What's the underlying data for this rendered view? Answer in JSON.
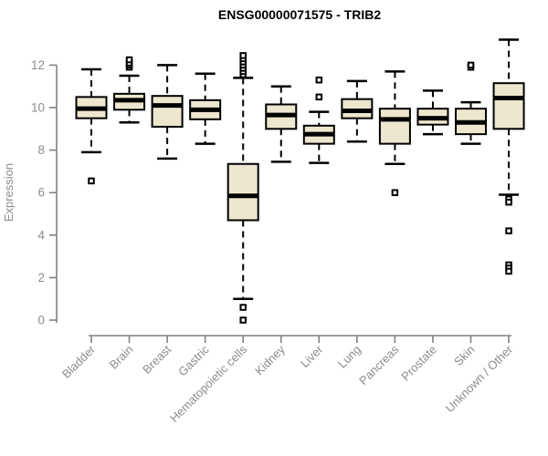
{
  "chart_data": {
    "type": "boxplot",
    "title": "ENSG00000071575 - TRIB2",
    "xlabel": "",
    "ylabel": "Expression",
    "grid": false,
    "legend": "none",
    "yticks": [
      0,
      2,
      4,
      6,
      8,
      10,
      12
    ],
    "ylim": [
      -0.3,
      13.4
    ],
    "categories": [
      "Bladder",
      "Brain",
      "Breast",
      "Gastric",
      "Hematopoietic cells",
      "Kidney",
      "Liver",
      "Lung",
      "Pancreas",
      "Prostate",
      "Skin",
      "Unknown / Other"
    ],
    "series": [
      {
        "category": "Bladder",
        "whisker_low": 7.9,
        "q1": 9.5,
        "median": 9.95,
        "q3": 10.5,
        "whisker_high": 11.8,
        "outliers": [
          6.55
        ]
      },
      {
        "category": "Brain",
        "whisker_low": 9.3,
        "q1": 9.9,
        "median": 10.35,
        "q3": 10.65,
        "whisker_high": 11.5,
        "outliers": [
          11.9,
          12.0,
          12.1,
          12.25
        ]
      },
      {
        "category": "Breast",
        "whisker_low": 7.6,
        "q1": 9.1,
        "median": 10.1,
        "q3": 10.55,
        "whisker_high": 12.0,
        "outliers": []
      },
      {
        "category": "Gastric",
        "whisker_low": 8.3,
        "q1": 9.45,
        "median": 9.9,
        "q3": 10.35,
        "whisker_high": 11.6,
        "outliers": []
      },
      {
        "category": "Hematopoietic cells",
        "whisker_low": 1.0,
        "q1": 4.7,
        "median": 5.85,
        "q3": 7.35,
        "whisker_high": 11.4,
        "outliers": [
          11.55,
          11.7,
          11.85,
          12.0,
          12.15,
          12.3,
          12.45,
          0.6,
          0.0
        ]
      },
      {
        "category": "Kidney",
        "whisker_low": 7.45,
        "q1": 9.0,
        "median": 9.65,
        "q3": 10.15,
        "whisker_high": 11.0,
        "outliers": []
      },
      {
        "category": "Liver",
        "whisker_low": 7.4,
        "q1": 8.3,
        "median": 8.75,
        "q3": 9.15,
        "whisker_high": 9.8,
        "outliers": [
          10.5,
          11.3
        ]
      },
      {
        "category": "Lung",
        "whisker_low": 8.4,
        "q1": 9.5,
        "median": 9.85,
        "q3": 10.4,
        "whisker_high": 11.25,
        "outliers": []
      },
      {
        "category": "Pancreas",
        "whisker_low": 7.35,
        "q1": 8.3,
        "median": 9.45,
        "q3": 9.95,
        "whisker_high": 11.7,
        "outliers": [
          6.0
        ]
      },
      {
        "category": "Prostate",
        "whisker_low": 8.75,
        "q1": 9.2,
        "median": 9.5,
        "q3": 9.95,
        "whisker_high": 10.8,
        "outliers": []
      },
      {
        "category": "Skin",
        "whisker_low": 8.3,
        "q1": 8.75,
        "median": 9.3,
        "q3": 9.95,
        "whisker_high": 10.25,
        "outliers": [
          11.9,
          12.0
        ]
      },
      {
        "category": "Unknown / Other",
        "whisker_low": 5.9,
        "q1": 9.0,
        "median": 10.45,
        "q3": 11.15,
        "whisker_high": 13.2,
        "outliers": [
          5.7,
          5.55,
          4.2,
          2.6,
          2.45,
          2.3
        ]
      }
    ],
    "colors": {
      "box_fill": "#EDE7CF",
      "box_stroke": "#000000",
      "median": "#000000",
      "whisker": "#000000",
      "outlier_stroke": "#000000",
      "outlier_fill": "#ffffff",
      "axis": "#808080",
      "tick_text": "#8c8c8c",
      "title_text": "#000000",
      "background": "#ffffff"
    }
  }
}
